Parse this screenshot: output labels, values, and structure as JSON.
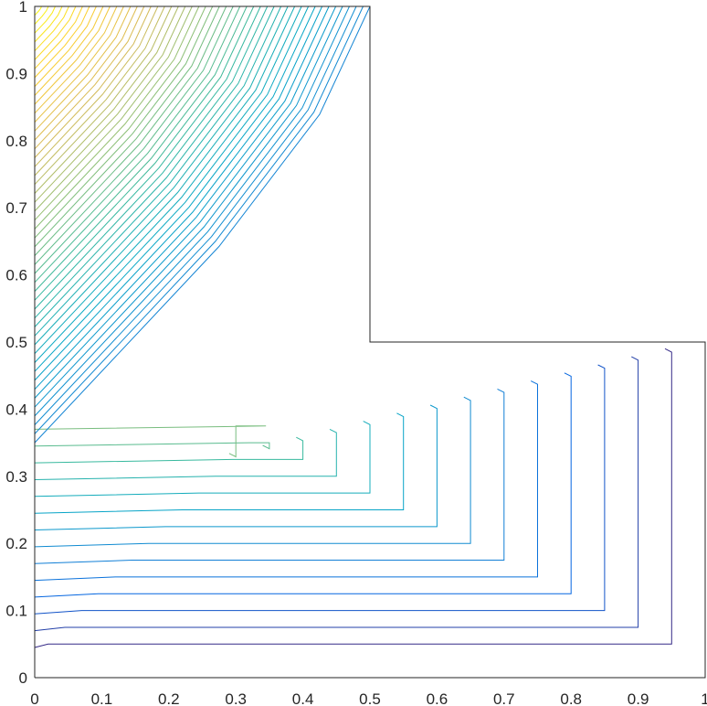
{
  "chart_data": {
    "type": "contour",
    "title": "",
    "xlabel": "",
    "ylabel": "",
    "xlim": [
      0,
      1
    ],
    "ylim": [
      0,
      1
    ],
    "grid": false,
    "domain": "L-shaped region: union of [0,0.5]x[0,1] and [0,1]x[0,0.5]",
    "xticks": [
      "0",
      "0.1",
      "0.2",
      "0.3",
      "0.4",
      "0.5",
      "0.6",
      "0.7",
      "0.8",
      "0.9",
      "1"
    ],
    "yticks": [
      "0",
      "0.1",
      "0.2",
      "0.3",
      "0.4",
      "0.5",
      "0.6",
      "0.7",
      "0.8",
      "0.9",
      "1"
    ],
    "colormap": [
      "#352a87",
      "#0363e1",
      "#1485d4",
      "#06a7c6",
      "#38b99e",
      "#92bf73",
      "#d9ba56",
      "#fcce2e",
      "#f9fb0e"
    ],
    "outer_levels": {
      "description": "L-shaped contours in the lower-right arm, each running horizontally at y then turning vertically at x",
      "start_y": [
        0.025,
        0.05,
        0.075,
        0.1,
        0.125,
        0.15,
        0.175,
        0.2,
        0.225,
        0.25,
        0.275,
        0.3,
        0.325,
        0.35
      ],
      "corner_x": [
        0.95,
        0.9,
        0.85,
        0.8,
        0.75,
        0.7,
        0.65,
        0.6,
        0.55,
        0.5,
        0.45,
        0.4,
        0.35,
        0.3
      ]
    },
    "inner_levels": {
      "description": "Contours entering from the left edge and climbing to the top edge, densest near the upper-left corner",
      "count": 50,
      "start_y_range": [
        0.35,
        1.0
      ],
      "end_x_range": [
        0.0,
        0.5
      ]
    }
  }
}
